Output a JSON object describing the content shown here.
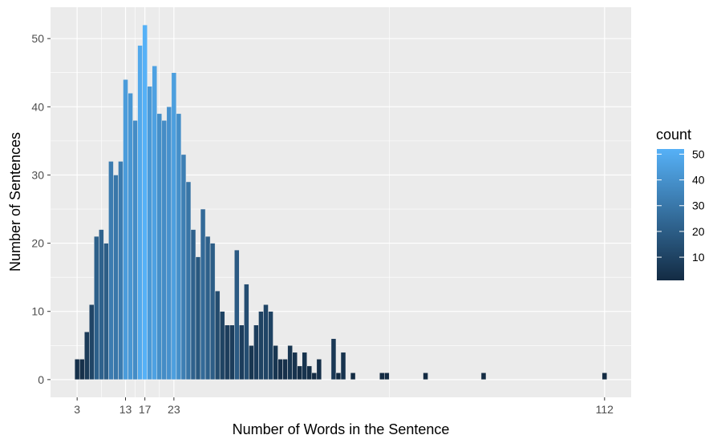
{
  "chart_data": {
    "type": "bar",
    "xlabel": "Number of Words in the Sentence",
    "ylabel": "Number of Sentences",
    "x_ticks": [
      3,
      13,
      17,
      23,
      112
    ],
    "y_ticks": [
      0,
      10,
      20,
      30,
      40,
      50
    ],
    "xlim": [
      -2.5,
      117.5
    ],
    "ylim": [
      -2.6,
      54.6
    ],
    "grid": true,
    "legend": {
      "title": "count",
      "position": "right",
      "labels": [
        10,
        20,
        30,
        40,
        50
      ],
      "range": [
        1,
        52
      ]
    },
    "colors": {
      "low": "#132B43",
      "high": "#56B1F7",
      "panel": "#EBEBEB",
      "grid": "#FFFFFF"
    },
    "x": [
      3,
      4,
      5,
      6,
      7,
      8,
      9,
      10,
      11,
      12,
      13,
      14,
      15,
      16,
      17,
      18,
      19,
      20,
      21,
      22,
      23,
      24,
      25,
      26,
      27,
      28,
      29,
      30,
      31,
      32,
      33,
      34,
      35,
      36,
      37,
      38,
      39,
      40,
      41,
      42,
      43,
      44,
      45,
      46,
      47,
      48,
      49,
      50,
      51,
      52,
      53,
      56,
      57,
      58,
      60,
      66,
      67,
      75,
      87,
      112
    ],
    "values": [
      3,
      3,
      7,
      11,
      21,
      22,
      20,
      32,
      30,
      32,
      44,
      42,
      38,
      49,
      52,
      43,
      46,
      39,
      38,
      40,
      45,
      39,
      33,
      29,
      22,
      18,
      25,
      21,
      20,
      13,
      10,
      8,
      8,
      19,
      8,
      14,
      5,
      8,
      10,
      11,
      10,
      5,
      3,
      3,
      5,
      4,
      2,
      4,
      2,
      1,
      3,
      6,
      1,
      4,
      1,
      1,
      1,
      1,
      1,
      1
    ]
  }
}
